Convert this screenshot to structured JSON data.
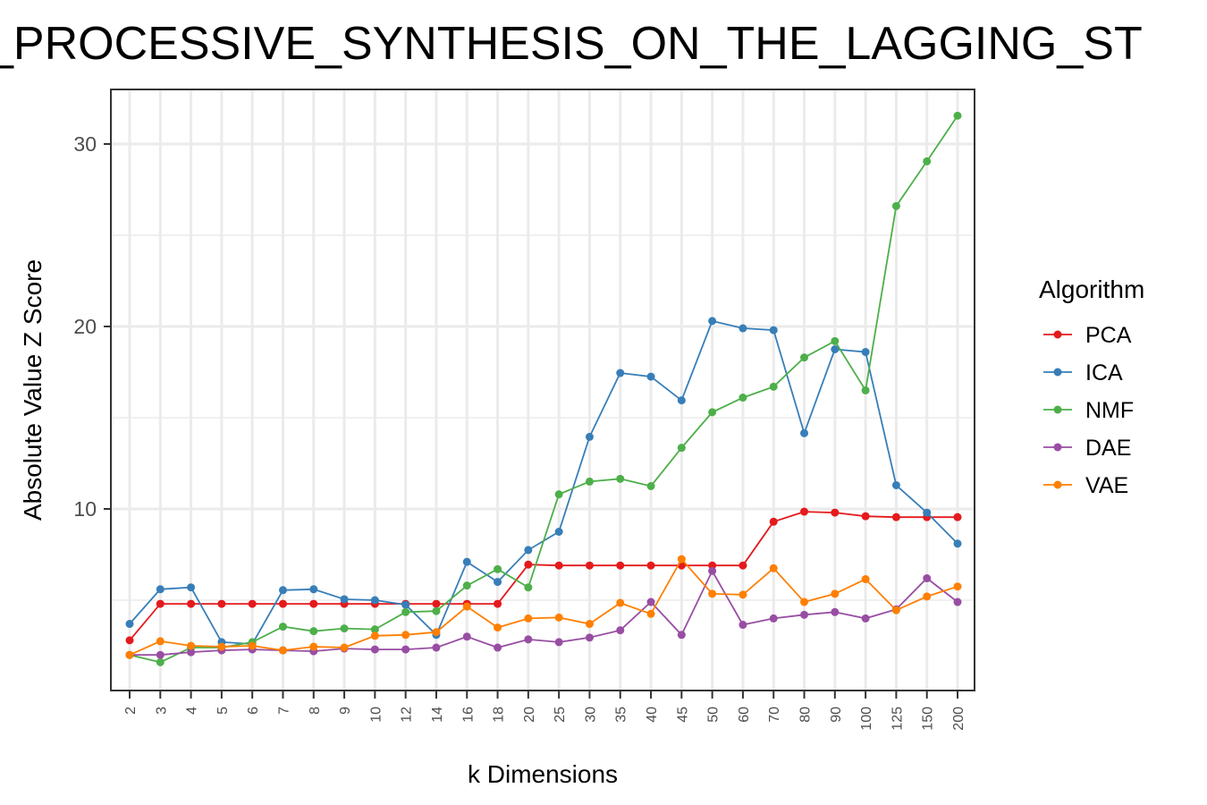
{
  "chart_data": {
    "type": "line",
    "title": "_PROCESSIVE_SYNTHESIS_ON_THE_LAGGING_ST",
    "xlabel": "k Dimensions",
    "ylabel": "Absolute Value Z Score",
    "categories": [
      "2",
      "3",
      "4",
      "5",
      "6",
      "7",
      "8",
      "9",
      "10",
      "12",
      "14",
      "16",
      "18",
      "20",
      "25",
      "30",
      "35",
      "40",
      "45",
      "50",
      "60",
      "70",
      "80",
      "90",
      "100",
      "125",
      "150",
      "200"
    ],
    "ylim": [
      0.5,
      33
    ],
    "yticks": [
      "10",
      "20",
      "30"
    ],
    "grid": true,
    "legend": {
      "title": "Algorithm",
      "position": "right"
    },
    "series": [
      {
        "name": "PCA",
        "color": "#E41A1C",
        "values": [
          2.8,
          4.8,
          4.8,
          4.8,
          4.8,
          4.8,
          4.8,
          4.8,
          4.8,
          4.8,
          4.8,
          4.8,
          4.8,
          6.95,
          6.9,
          6.9,
          6.9,
          6.9,
          6.9,
          6.9,
          6.9,
          9.3,
          9.85,
          9.8,
          9.6,
          9.55,
          9.55,
          9.55
        ]
      },
      {
        "name": "ICA",
        "color": "#377EB8",
        "values": [
          3.7,
          5.6,
          5.7,
          2.7,
          2.6,
          5.55,
          5.6,
          5.05,
          5.0,
          4.75,
          3.1,
          7.1,
          6.0,
          7.75,
          8.75,
          13.95,
          17.45,
          17.25,
          15.95,
          20.3,
          19.9,
          19.8,
          14.15,
          18.75,
          18.6,
          11.3,
          9.8,
          8.1
        ]
      },
      {
        "name": "NMF",
        "color": "#4DAF4A",
        "values": [
          2.0,
          1.6,
          2.4,
          2.4,
          2.7,
          3.55,
          3.3,
          3.45,
          3.4,
          4.35,
          4.4,
          5.8,
          6.7,
          5.7,
          10.8,
          11.5,
          11.65,
          11.25,
          13.35,
          15.3,
          16.1,
          16.7,
          18.3,
          19.2,
          16.5,
          26.6,
          29.05,
          31.55
        ]
      },
      {
        "name": "DAE",
        "color": "#984EA3",
        "values": [
          2.0,
          2.0,
          2.15,
          2.25,
          2.3,
          2.25,
          2.2,
          2.35,
          2.3,
          2.3,
          2.4,
          3.0,
          2.4,
          2.85,
          2.7,
          2.95,
          3.35,
          4.9,
          3.1,
          6.6,
          3.65,
          4.0,
          4.2,
          4.35,
          4.0,
          4.5,
          6.2,
          4.9
        ]
      },
      {
        "name": "VAE",
        "color": "#FF7F00",
        "values": [
          2.0,
          2.75,
          2.5,
          2.45,
          2.5,
          2.25,
          2.45,
          2.4,
          3.05,
          3.1,
          3.25,
          4.65,
          3.5,
          4.0,
          4.05,
          3.7,
          4.85,
          4.25,
          7.25,
          5.35,
          5.3,
          6.75,
          4.9,
          5.35,
          6.15,
          4.45,
          5.2,
          5.75
        ]
      }
    ]
  }
}
